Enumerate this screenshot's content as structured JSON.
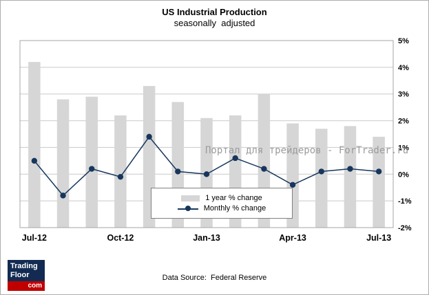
{
  "page": {
    "title": "US Industrial Production",
    "subtitle": "seasonally  adjusted",
    "watermark": "Портал для трейдеров - ForTrader.ru",
    "data_source": "Data Source:  Federal Reserve",
    "logo": {
      "line1": "Trading",
      "line2": "Floor",
      "tld": "com"
    }
  },
  "chart_data": {
    "type": "bar",
    "title": "US Industrial Production",
    "subtitle": "seasonally adjusted",
    "categories": [
      "Jul-12",
      "Aug-12",
      "Sep-12",
      "Oct-12",
      "Nov-12",
      "Dec-12",
      "Jan-13",
      "Feb-13",
      "Mar-13",
      "Apr-13",
      "May-13",
      "Jun-13",
      "Jul-13"
    ],
    "x_tick_labels": [
      "Jul-12",
      "Oct-12",
      "Jan-13",
      "Apr-13",
      "Jul-13"
    ],
    "x_tick_indices": [
      0,
      3,
      6,
      9,
      12
    ],
    "series": [
      {
        "name": "1 year % change",
        "type": "bar",
        "color": "#d6d6d6",
        "values": [
          4.2,
          2.8,
          2.9,
          2.2,
          3.3,
          2.7,
          2.1,
          2.2,
          3.0,
          1.9,
          1.7,
          1.8,
          1.4
        ]
      },
      {
        "name": "Monthly % change",
        "type": "line",
        "color": "#17365d",
        "values": [
          0.5,
          -0.8,
          0.2,
          -0.1,
          1.4,
          0.1,
          0.0,
          0.6,
          0.2,
          -0.4,
          0.1,
          0.2,
          0.1
        ]
      }
    ],
    "ylim": [
      -2,
      5
    ],
    "y_ticks": [
      "5%",
      "4%",
      "3%",
      "2%",
      "1%",
      "0%",
      "-1%",
      "-2%"
    ],
    "y_axis_side": "right",
    "grid": true,
    "legend_position": "inside-bottom-center"
  }
}
